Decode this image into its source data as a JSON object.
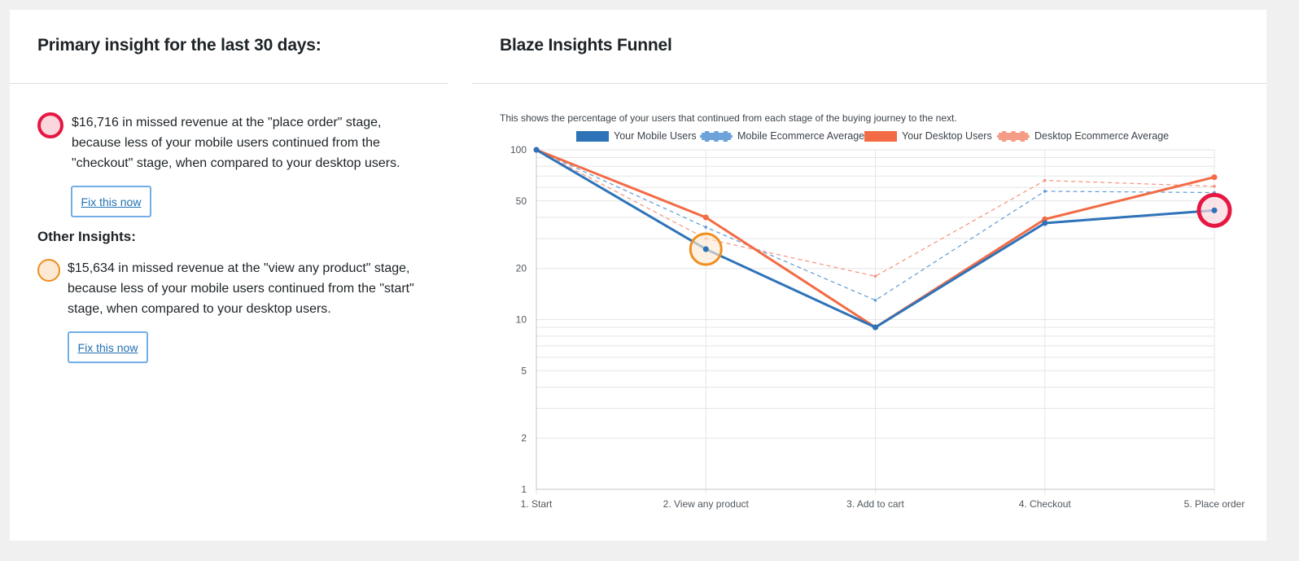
{
  "left_panel": {
    "title": "Primary insight for the last 30 days:",
    "primary_insight": {
      "text": "$16,716 in missed revenue at the \"place order\" stage, because less of your mobile users continued from the \"checkout\" stage, when compared to your desktop users.",
      "button_label": "Fix this now",
      "marker_color": "#e61742"
    },
    "other_heading": "Other Insights:",
    "other_insights": [
      {
        "text": "$15,634 in missed revenue at the \"view any product\" stage, because less of your mobile users continued from the \"start\" stage, when compared to your desktop users.",
        "button_label": "Fix this now",
        "marker_color": "#ef8e1f"
      }
    ]
  },
  "right_panel": {
    "title": "Blaze Insights Funnel",
    "description": "This shows the percentage of your users that continued from each stage of the buying journey to the next."
  },
  "chart_data": {
    "type": "line",
    "title": "",
    "xlabel": "",
    "ylabel": "",
    "y_scale": "log",
    "ylim": [
      1,
      100
    ],
    "y_ticks": [
      1,
      2,
      5,
      10,
      20,
      50,
      100
    ],
    "grid": true,
    "legend_position": "top",
    "categories": [
      "1. Start",
      "2. View any product",
      "3. Add to cart",
      "4. Checkout",
      "5. Place order"
    ],
    "series": [
      {
        "name": "Your Mobile Users",
        "values": [
          100,
          26,
          9,
          37,
          44
        ],
        "color": "#2e73b8",
        "style": "solid"
      },
      {
        "name": "Mobile Ecommerce Average",
        "values": [
          100,
          35,
          13,
          57,
          56
        ],
        "color": "#5f9ad5",
        "style": "dashed"
      },
      {
        "name": "Your Desktop Users",
        "values": [
          100,
          40,
          9,
          39,
          69
        ],
        "color": "#f26b45",
        "style": "solid"
      },
      {
        "name": "Desktop Ecommerce Average",
        "values": [
          100,
          30,
          18,
          66,
          61
        ],
        "color": "#f5927a",
        "style": "dashed"
      }
    ],
    "highlights": [
      {
        "category": "5. Place order",
        "series": "Your Mobile Users",
        "color": "#e61742"
      },
      {
        "category": "2. View any product",
        "series": "Your Mobile Users",
        "color": "#ef8e1f"
      }
    ]
  }
}
